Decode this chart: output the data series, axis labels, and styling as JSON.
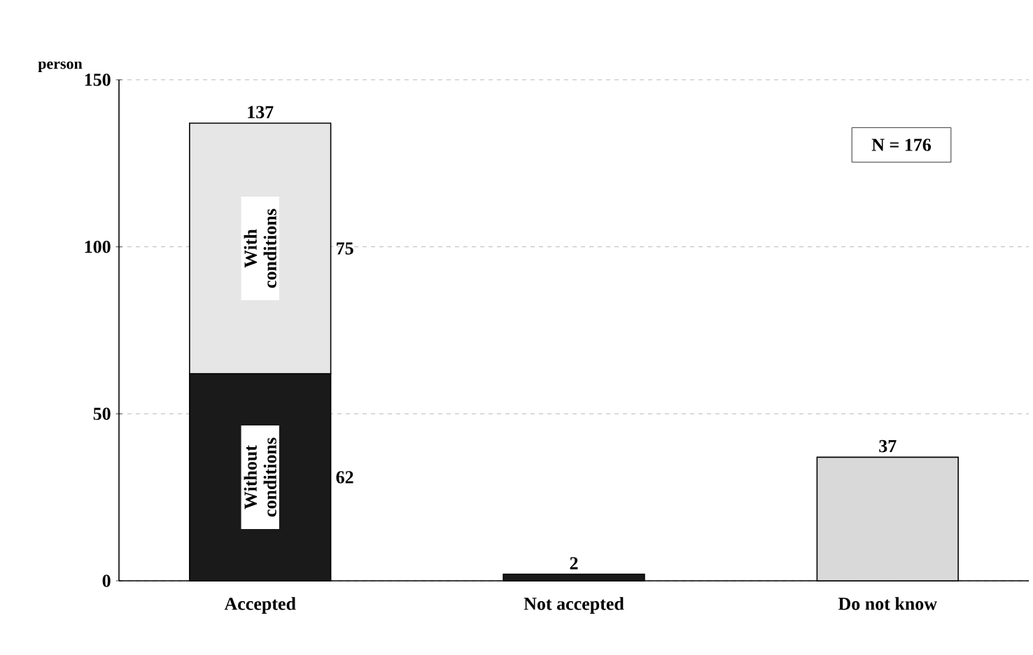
{
  "chart_data": {
    "type": "bar",
    "stacked": true,
    "ylabel": "person",
    "categories": [
      "Accepted",
      "Not accepted",
      "Do not know"
    ],
    "series": [
      {
        "name": "Without conditions",
        "color": "#1a1a1a",
        "values": [
          62,
          2,
          null
        ],
        "value_labels": [
          "62",
          "2",
          null
        ]
      },
      {
        "name": "With conditions",
        "color": "#e6e6e6",
        "values": [
          75,
          null,
          null
        ],
        "value_labels": [
          "75",
          null,
          null
        ]
      },
      {
        "color": "#d9d9d9",
        "values": [
          null,
          null,
          37
        ],
        "value_labels": [
          null,
          null,
          "37"
        ]
      }
    ],
    "totals": [
      "137",
      null,
      null
    ],
    "ylim": [
      0,
      150
    ],
    "yticks": [
      0,
      50,
      100,
      150
    ],
    "grid": "y",
    "annotations": [
      "N = 176"
    ]
  }
}
